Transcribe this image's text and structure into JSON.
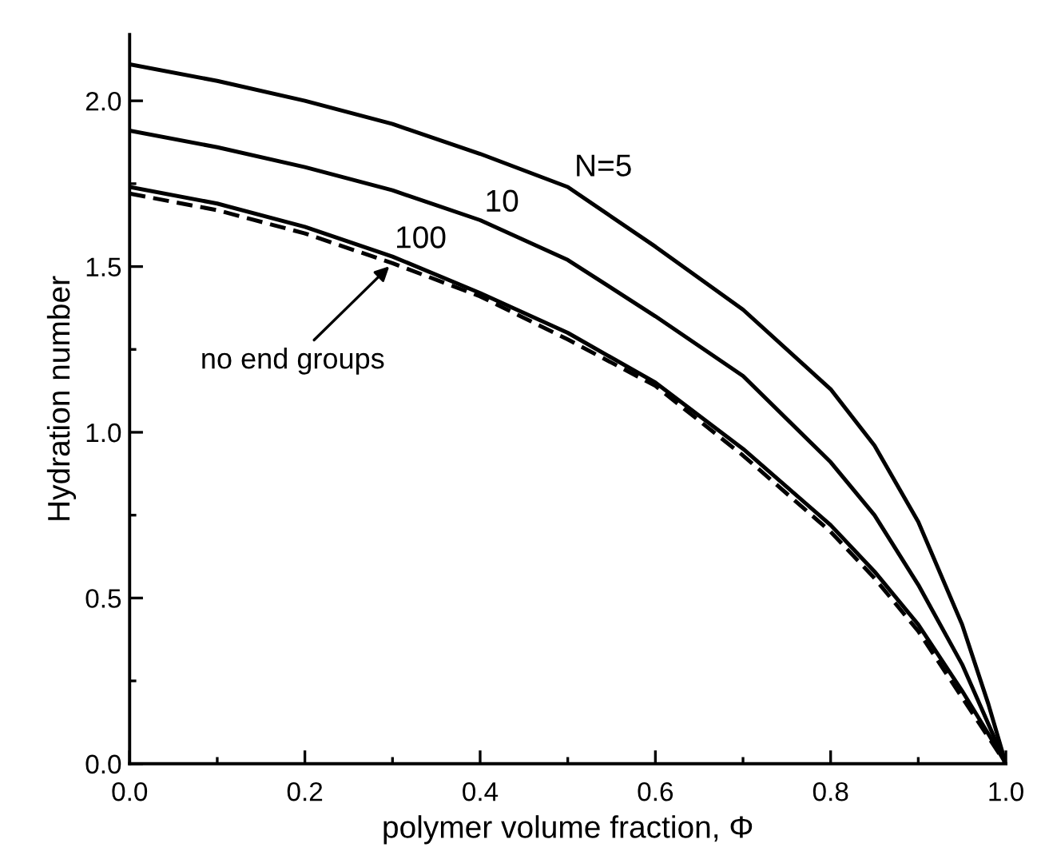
{
  "chart_data": {
    "type": "line",
    "xlabel": "polymer volume fraction, Φ",
    "ylabel": "Hydration number",
    "xlim": [
      0,
      1
    ],
    "ylim": [
      0,
      2.2
    ],
    "xticks": [
      {
        "value": 0,
        "label": "0.0"
      },
      0.2,
      0.4,
      0.6,
      0.8,
      {
        "value": 1,
        "label": "1.0"
      }
    ],
    "yticks": [
      {
        "value": 0,
        "label": "0.0"
      },
      0.5,
      {
        "value": 1,
        "label": "1.0"
      },
      1.5,
      {
        "value": 2,
        "label": "2.0"
      }
    ],
    "x": [
      0,
      0.1,
      0.2,
      0.3,
      0.4,
      0.5,
      0.6,
      0.7,
      0.8,
      0.85,
      0.9,
      0.95,
      0.98,
      1.0
    ],
    "marker": "none",
    "grid": false,
    "legend": false,
    "series": [
      {
        "name": "N=5",
        "color": "#000000",
        "line_style": "solid",
        "values": [
          2.11,
          2.06,
          2.0,
          1.93,
          1.84,
          1.74,
          1.56,
          1.37,
          1.13,
          0.96,
          0.73,
          0.42,
          0.18,
          0
        ]
      },
      {
        "name": "10",
        "color": "#000000",
        "line_style": "solid",
        "values": [
          1.91,
          1.86,
          1.8,
          1.73,
          1.64,
          1.52,
          1.35,
          1.17,
          0.91,
          0.75,
          0.54,
          0.3,
          0.12,
          0
        ]
      },
      {
        "name": "100",
        "color": "#000000",
        "line_style": "solid",
        "values": [
          1.74,
          1.69,
          1.62,
          1.53,
          1.42,
          1.3,
          1.15,
          0.95,
          0.72,
          0.58,
          0.42,
          0.22,
          0.09,
          0
        ]
      },
      {
        "name": "no end groups",
        "color": "#000000",
        "line_style": "dashed",
        "values": [
          1.72,
          1.67,
          1.6,
          1.51,
          1.41,
          1.28,
          1.14,
          0.93,
          0.7,
          0.56,
          0.4,
          0.2,
          0.08,
          0
        ]
      }
    ]
  }
}
